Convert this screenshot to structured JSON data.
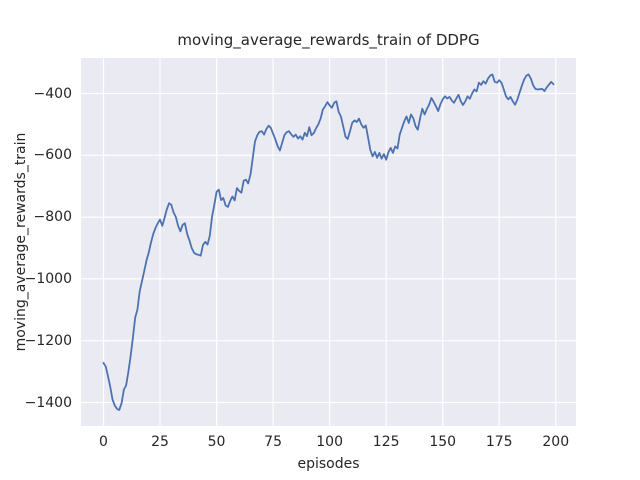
{
  "figure": {
    "background": "#ffffff",
    "plot_background": "#eaeaf2",
    "grid_color": "#ffffff",
    "text_color": "#262626"
  },
  "chart_data": {
    "type": "line",
    "title": "moving_average_rewards_train of DDPG",
    "xlabel": "episodes",
    "ylabel": "moving_average_rewards_train",
    "grid": true,
    "legend": false,
    "line_color": "#4c72b0",
    "xlim": [
      -9.95,
      208.95
    ],
    "ylim": [
      -1476,
      -285
    ],
    "x_ticks": [
      {
        "v": 0,
        "label": "0"
      },
      {
        "v": 25,
        "label": "25"
      },
      {
        "v": 50,
        "label": "50"
      },
      {
        "v": 75,
        "label": "75"
      },
      {
        "v": 100,
        "label": "100"
      },
      {
        "v": 125,
        "label": "125"
      },
      {
        "v": 150,
        "label": "150"
      },
      {
        "v": 175,
        "label": "175"
      },
      {
        "v": 200,
        "label": "200"
      }
    ],
    "y_ticks": [
      {
        "v": -400,
        "label": "−400"
      },
      {
        "v": -600,
        "label": "−600"
      },
      {
        "v": -800,
        "label": "−800"
      },
      {
        "v": -1000,
        "label": "−1000"
      },
      {
        "v": -1200,
        "label": "−1200"
      },
      {
        "v": -1400,
        "label": "−1400"
      }
    ],
    "series": [
      {
        "name": "moving_average_rewards_train",
        "x_start": 0,
        "x_step": 1,
        "y": [
          -1272,
          -1284,
          -1315,
          -1350,
          -1390,
          -1410,
          -1421,
          -1424,
          -1402,
          -1358,
          -1345,
          -1300,
          -1250,
          -1190,
          -1125,
          -1100,
          -1040,
          -1008,
          -975,
          -940,
          -915,
          -882,
          -855,
          -835,
          -820,
          -808,
          -828,
          -802,
          -775,
          -755,
          -760,
          -785,
          -800,
          -828,
          -846,
          -825,
          -820,
          -855,
          -875,
          -900,
          -915,
          -920,
          -922,
          -925,
          -890,
          -880,
          -889,
          -860,
          -800,
          -760,
          -718,
          -711,
          -745,
          -738,
          -762,
          -767,
          -748,
          -733,
          -746,
          -706,
          -715,
          -721,
          -682,
          -679,
          -691,
          -662,
          -610,
          -555,
          -535,
          -524,
          -522,
          -533,
          -515,
          -504,
          -511,
          -530,
          -549,
          -570,
          -584,
          -560,
          -535,
          -525,
          -522,
          -532,
          -540,
          -533,
          -546,
          -538,
          -549,
          -527,
          -538,
          -509,
          -535,
          -528,
          -512,
          -500,
          -481,
          -452,
          -441,
          -428,
          -438,
          -446,
          -430,
          -425,
          -460,
          -474,
          -506,
          -540,
          -547,
          -522,
          -495,
          -487,
          -492,
          -481,
          -500,
          -511,
          -503,
          -543,
          -582,
          -603,
          -589,
          -608,
          -592,
          -611,
          -596,
          -614,
          -590,
          -576,
          -592,
          -571,
          -578,
          -533,
          -511,
          -490,
          -474,
          -495,
          -468,
          -480,
          -506,
          -517,
          -480,
          -449,
          -468,
          -450,
          -436,
          -414,
          -427,
          -441,
          -457,
          -435,
          -419,
          -409,
          -416,
          -411,
          -422,
          -430,
          -416,
          -404,
          -425,
          -437,
          -425,
          -409,
          -417,
          -400,
          -387,
          -393,
          -365,
          -372,
          -360,
          -368,
          -352,
          -342,
          -338,
          -362,
          -365,
          -357,
          -365,
          -387,
          -409,
          -419,
          -411,
          -425,
          -436,
          -420,
          -397,
          -375,
          -355,
          -342,
          -338,
          -352,
          -373,
          -385,
          -387,
          -386,
          -385,
          -392,
          -380,
          -371,
          -362,
          -370
        ]
      }
    ]
  }
}
